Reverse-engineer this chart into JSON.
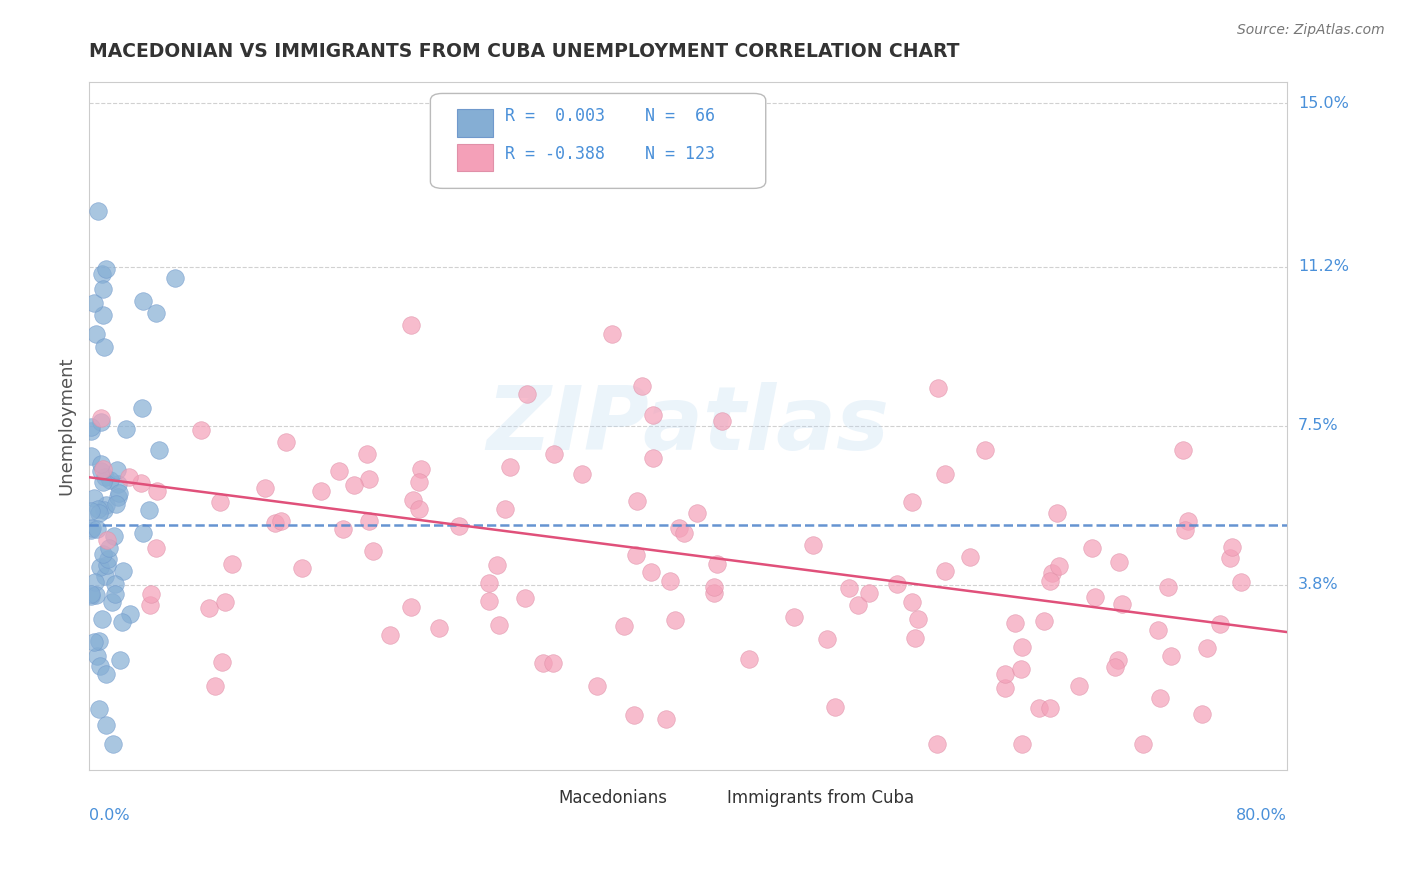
{
  "title": "MACEDONIAN VS IMMIGRANTS FROM CUBA UNEMPLOYMENT CORRELATION CHART",
  "source": "Source: ZipAtlas.com",
  "ylabel": "Unemployment",
  "color_macedonian": "#85aed4",
  "color_cuba": "#f4a0b8",
  "color_line_macedonian": "#5588cc",
  "color_line_cuba": "#e0507a",
  "color_axis_labels": "#4a90d9",
  "color_title": "#333333",
  "color_grid": "#cccccc",
  "xlim": [
    0.0,
    0.8
  ],
  "ylim": [
    -0.005,
    0.155
  ],
  "ytick_vals": [
    0.038,
    0.075,
    0.112,
    0.15
  ],
  "ytick_labels": [
    "3.8%",
    "7.5%",
    "11.2%",
    "15.0%"
  ],
  "mac_trend_y0": 0.052,
  "mac_trend_y1": 0.052,
  "mac_trend_x0": 0.0,
  "mac_trend_x1": 0.8,
  "cuba_trend_y0": 0.063,
  "cuba_trend_y1": 0.027,
  "cuba_trend_x0": 0.0,
  "cuba_trend_x1": 0.8,
  "watermark": "ZIPatlas"
}
